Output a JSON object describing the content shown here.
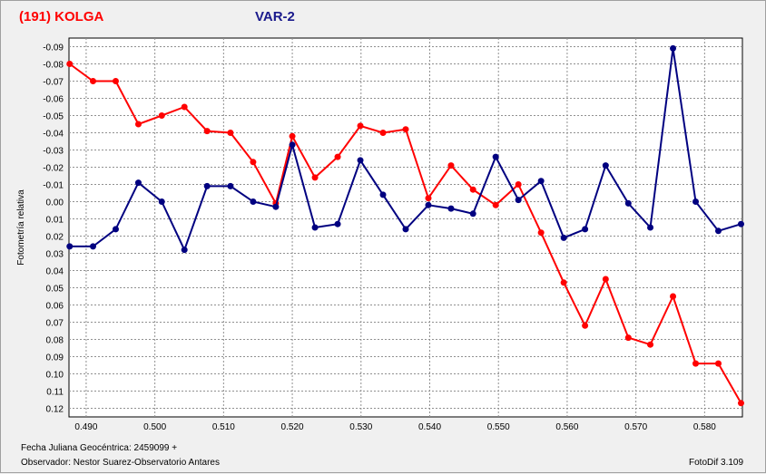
{
  "header": {
    "object_title": "(191) KOLGA",
    "variable_title": "VAR-2"
  },
  "footer": {
    "julian_date": "Fecha Juliana Geocéntrica: 2459099 +",
    "observer": "Observador: Nestor Suarez-Observatorio Antares",
    "software": "FotoDif 3.109"
  },
  "colors": {
    "series_red": "#ff0000",
    "series_blue": "#000080",
    "grid": "#909090",
    "plot_bg": "#ffffff"
  },
  "chart_data": {
    "type": "line",
    "title": "",
    "xlabel": "",
    "ylabel": "Fotometría relativa",
    "y_inverted": true,
    "xlim": [
      0.4875,
      0.5855
    ],
    "ylim": [
      -0.095,
      0.125
    ],
    "grid": true,
    "x_ticks": [
      0.49,
      0.5,
      0.51,
      0.52,
      0.53,
      0.54,
      0.55,
      0.56,
      0.57,
      0.58
    ],
    "x_tick_labels": [
      "0.490",
      "0.500",
      "0.510",
      "0.520",
      "0.530",
      "0.540",
      "0.550",
      "0.560",
      "0.570",
      "0.580"
    ],
    "y_ticks": [
      -0.09,
      -0.08,
      -0.07,
      -0.06,
      -0.05,
      -0.04,
      -0.03,
      -0.02,
      -0.01,
      0.0,
      0.01,
      0.02,
      0.03,
      0.04,
      0.05,
      0.06,
      0.07,
      0.08,
      0.09,
      0.1,
      0.11,
      0.12
    ],
    "y_tick_labels": [
      "-0.09",
      "-0.08",
      "-0.07",
      "-0.06",
      "-0.05",
      "-0.04",
      "-0.03",
      "-0.02",
      "-0.01",
      "0.00",
      "0.01",
      "0.02",
      "0.03",
      "0.04",
      "0.05",
      "0.06",
      "0.07",
      "0.08",
      "0.09",
      "0.10",
      "0.11",
      "0.12"
    ],
    "series": [
      {
        "color": "#ff0000",
        "x": [
          0.4876,
          0.491,
          0.4943,
          0.4976,
          0.501,
          0.5043,
          0.5076,
          0.511,
          0.5143,
          0.5176,
          0.52,
          0.5233,
          0.5266,
          0.5299,
          0.5332,
          0.5365,
          0.5398,
          0.5431,
          0.5463,
          0.5496,
          0.5529,
          0.5562,
          0.5595,
          0.5626,
          0.5656,
          0.5689,
          0.5721,
          0.5754,
          0.5787,
          0.582,
          0.5853
        ],
        "y": [
          -0.08,
          -0.07,
          -0.07,
          -0.045,
          -0.05,
          -0.055,
          -0.041,
          -0.04,
          -0.023,
          0.001,
          -0.038,
          -0.014,
          -0.026,
          -0.044,
          -0.04,
          -0.042,
          -0.002,
          -0.021,
          -0.007,
          0.002,
          -0.01,
          0.018,
          0.047,
          0.072,
          0.045,
          0.079,
          0.083,
          0.055,
          0.094,
          0.094,
          0.117
        ]
      },
      {
        "color": "#000080",
        "x": [
          0.4876,
          0.491,
          0.4943,
          0.4976,
          0.501,
          0.5043,
          0.5076,
          0.511,
          0.5143,
          0.5176,
          0.52,
          0.5233,
          0.5266,
          0.5299,
          0.5332,
          0.5365,
          0.5398,
          0.5431,
          0.5463,
          0.5496,
          0.5529,
          0.5562,
          0.5595,
          0.5626,
          0.5656,
          0.5689,
          0.5721,
          0.5754,
          0.5787,
          0.582,
          0.5853
        ],
        "y": [
          0.026,
          0.026,
          0.016,
          -0.011,
          0.0,
          0.028,
          -0.009,
          -0.009,
          0.0,
          0.003,
          -0.033,
          0.015,
          0.013,
          -0.024,
          -0.004,
          0.016,
          0.002,
          0.004,
          0.007,
          -0.026,
          -0.001,
          -0.012,
          0.021,
          0.016,
          -0.021,
          0.001,
          0.015,
          -0.089,
          0.0,
          0.017,
          0.013
        ]
      }
    ]
  }
}
